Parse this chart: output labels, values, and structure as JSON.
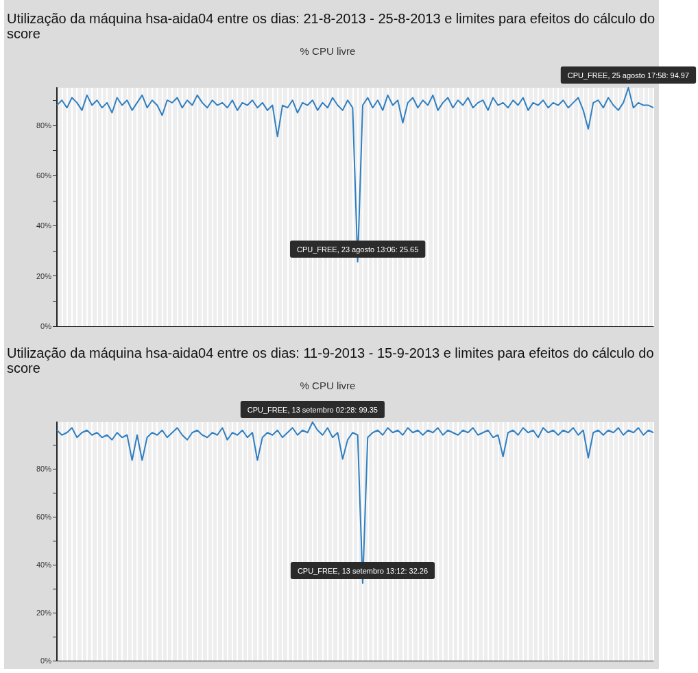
{
  "chart_data": [
    {
      "type": "line",
      "title": "Utilização da máquina hsa-aida04 entre os dias: 21-8-2013 - 25-8-2013 e limites para efeitos do cálculo do score",
      "subtitle": "% CPU livre",
      "categories": [
        null,
        null,
        null,
        null,
        null,
        null,
        null,
        null,
        null,
        null,
        null,
        null,
        null,
        null,
        null,
        null,
        null,
        null,
        null,
        null,
        null,
        null,
        null,
        null,
        null,
        null,
        null,
        null,
        null,
        null,
        null,
        null,
        null,
        null,
        null,
        null,
        null,
        null,
        null,
        null,
        null,
        null,
        null,
        null,
        null,
        null,
        null,
        null,
        null,
        null,
        null,
        null,
        null,
        null,
        null,
        null,
        null,
        null,
        null,
        null,
        null,
        null,
        null,
        null,
        null,
        null,
        null,
        null,
        null,
        null,
        null,
        null,
        null,
        null,
        null,
        null,
        null,
        null,
        null,
        null,
        null,
        null,
        null,
        null,
        null,
        null,
        null,
        null,
        null,
        null,
        null,
        null,
        null,
        null,
        null,
        null,
        null,
        null,
        null,
        null,
        null,
        null,
        null,
        null,
        null,
        null,
        null,
        null,
        null,
        null,
        null,
        null,
        null,
        null,
        null,
        null,
        null,
        null,
        null,
        null
      ],
      "series": [
        {
          "color": "#2f7fc1",
          "values": [
            88,
            90,
            87,
            91,
            89,
            86,
            92,
            88,
            90,
            87,
            89,
            85,
            91,
            88,
            90,
            86,
            89,
            92,
            87,
            90,
            88,
            84,
            90,
            89,
            91,
            87,
            90,
            88,
            92,
            89,
            87,
            90,
            88,
            89,
            87,
            90,
            86,
            89,
            88,
            90,
            87,
            89,
            86,
            88,
            75.5,
            88,
            87,
            90,
            85,
            89,
            88,
            90,
            86,
            89,
            87,
            91,
            88,
            86,
            90,
            87,
            25.65,
            88,
            91,
            87,
            90,
            86,
            92,
            88,
            90,
            81,
            89,
            91,
            87,
            90,
            88,
            92,
            86,
            89,
            91,
            87,
            90,
            88,
            91,
            87,
            89,
            90,
            86,
            91,
            88,
            89,
            87,
            90,
            88,
            91,
            86,
            89,
            88,
            90,
            87,
            89,
            88,
            90,
            87,
            89,
            91,
            86,
            78.5,
            89,
            90,
            87,
            91,
            88,
            86,
            89,
            94.97,
            87,
            89,
            88,
            88,
            87
          ]
        }
      ],
      "ylim": [
        0,
        94.97
      ],
      "yticks": [
        {
          "value": 0,
          "label": "0%"
        },
        {
          "value": 10,
          "label": null
        },
        {
          "value": 20,
          "label": "20%"
        },
        {
          "value": 30,
          "label": null
        },
        {
          "value": 40,
          "label": "40%"
        },
        {
          "value": 50,
          "label": null
        },
        {
          "value": 60,
          "label": "60%"
        },
        {
          "value": 70,
          "label": null
        },
        {
          "value": 80,
          "label": "80%"
        },
        {
          "value": 90,
          "label": null
        }
      ],
      "grid": "x",
      "tick_labels": "y",
      "annotations": [
        {
          "text": "CPU_FREE, 25 agosto 17:58: 94.97",
          "y": 94.97
        },
        {
          "text": "CPU_FREE, 23 agosto 13:06: 25.65",
          "y": 25.65
        }
      ]
    },
    {
      "type": "line",
      "title": "Utilização da máquina hsa-aida04 entre os dias: 11-9-2013 - 15-9-2013 e limites para efeitos do cálculo do score",
      "subtitle": "% CPU livre",
      "categories": [
        null,
        null,
        null,
        null,
        null,
        null,
        null,
        null,
        null,
        null,
        null,
        null,
        null,
        null,
        null,
        null,
        null,
        null,
        null,
        null,
        null,
        null,
        null,
        null,
        null,
        null,
        null,
        null,
        null,
        null,
        null,
        null,
        null,
        null,
        null,
        null,
        null,
        null,
        null,
        null,
        null,
        null,
        null,
        null,
        null,
        null,
        null,
        null,
        null,
        null,
        null,
        null,
        null,
        null,
        null,
        null,
        null,
        null,
        null,
        null,
        null,
        null,
        null,
        null,
        null,
        null,
        null,
        null,
        null,
        null,
        null,
        null,
        null,
        null,
        null,
        null,
        null,
        null,
        null,
        null,
        null,
        null,
        null,
        null,
        null,
        null,
        null,
        null,
        null,
        null,
        null,
        null,
        null,
        null,
        null,
        null,
        null,
        null,
        null,
        null,
        null,
        null,
        null,
        null,
        null,
        null,
        null,
        null,
        null,
        null,
        null,
        null,
        null,
        null,
        null,
        null,
        null,
        null,
        null,
        null
      ],
      "series": [
        {
          "color": "#2f7fc1",
          "values": [
            96,
            94,
            95,
            97,
            93,
            95,
            96,
            94,
            95,
            93,
            94,
            92,
            95,
            93,
            94,
            83.5,
            94,
            83.5,
            93,
            95,
            94,
            96,
            93,
            95,
            97,
            94,
            92,
            95,
            96,
            94,
            93,
            95,
            94,
            97,
            92,
            95,
            94,
            96,
            93,
            95,
            83.5,
            93,
            95,
            94,
            96,
            93,
            95,
            97,
            94,
            96,
            95,
            99.35,
            96,
            94,
            97,
            93,
            95,
            84,
            92,
            95,
            94,
            32.26,
            93,
            95,
            96,
            94,
            97,
            95,
            96,
            94,
            97,
            95,
            96,
            94,
            96,
            95,
            97,
            94,
            96,
            95,
            94,
            96,
            95,
            97,
            94,
            95,
            96,
            93,
            94,
            85,
            95,
            96,
            94,
            97,
            95,
            96,
            93,
            97,
            95,
            96,
            94,
            96,
            95,
            97,
            94,
            96,
            84.5,
            95,
            96,
            94,
            96,
            95,
            97,
            94,
            96,
            95,
            97,
            94,
            96,
            95
          ]
        }
      ],
      "ylim": [
        0,
        99.35
      ],
      "yticks": [
        {
          "value": 0,
          "label": "0%"
        },
        {
          "value": 10,
          "label": null
        },
        {
          "value": 20,
          "label": "20%"
        },
        {
          "value": 30,
          "label": null
        },
        {
          "value": 40,
          "label": "40%"
        },
        {
          "value": 50,
          "label": null
        },
        {
          "value": 60,
          "label": "60%"
        },
        {
          "value": 70,
          "label": null
        },
        {
          "value": 80,
          "label": "80%"
        },
        {
          "value": 90,
          "label": null
        }
      ],
      "grid": "x",
      "tick_labels": "y",
      "annotations": [
        {
          "text": "CPU_FREE, 13 setembro 02:28: 99.35",
          "y": 99.35
        },
        {
          "text": "CPU_FREE, 13 setembro 13:12: 32.26",
          "y": 32.26
        }
      ]
    }
  ]
}
